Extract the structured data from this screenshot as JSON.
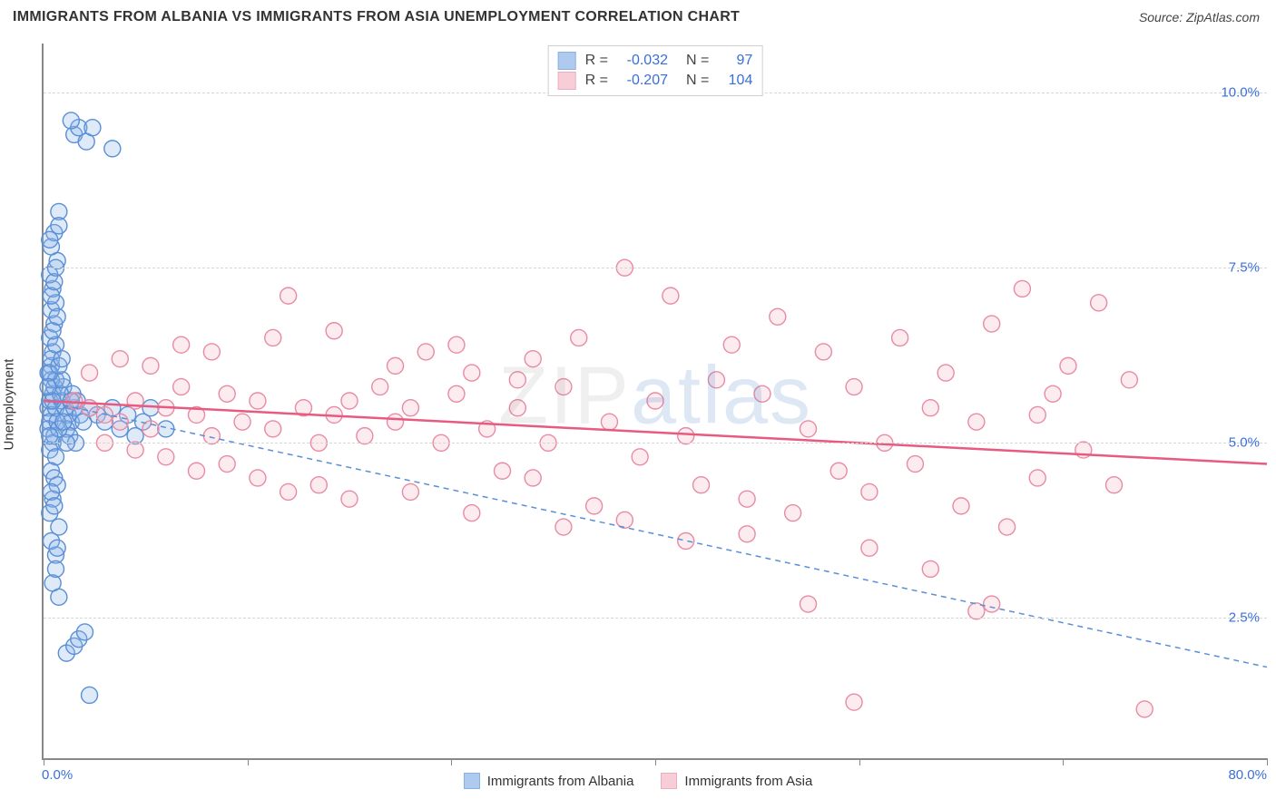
{
  "header": {
    "title": "IMMIGRANTS FROM ALBANIA VS IMMIGRANTS FROM ASIA UNEMPLOYMENT CORRELATION CHART",
    "source_prefix": "Source: ",
    "source_name": "ZipAtlas.com"
  },
  "watermark": {
    "part1": "ZIP",
    "part2": "atlas"
  },
  "chart": {
    "type": "scatter",
    "y_axis_title": "Unemployment",
    "xlim": [
      0,
      80
    ],
    "ylim": [
      0.5,
      10.7
    ],
    "x_ticks": [
      0,
      13.33,
      26.67,
      40,
      53.33,
      66.67,
      80
    ],
    "x_tick_labels": {
      "min": "0.0%",
      "max": "80.0%"
    },
    "y_gridlines": [
      2.5,
      5.0,
      7.5,
      10.0
    ],
    "y_tick_labels": [
      "2.5%",
      "5.0%",
      "7.5%",
      "10.0%"
    ],
    "background_color": "#ffffff",
    "grid_color": "#d7d7d7",
    "axis_color": "#888888",
    "label_color": "#3a6fd8",
    "marker_radius": 9,
    "marker_stroke_width": 1.4,
    "marker_fill_opacity": 0.28,
    "series": [
      {
        "id": "albania",
        "label": "Immigrants from Albania",
        "color_stroke": "#5a8fd6",
        "color_fill": "#8db5e8",
        "stats": {
          "R": "-0.032",
          "N": "97"
        },
        "trend": {
          "x1": 0,
          "y1": 5.6,
          "x2": 80,
          "y2": 1.8,
          "dash": "6,5",
          "width": 1.5,
          "color": "#5a8fd6"
        },
        "points": [
          [
            0.3,
            5.5
          ],
          [
            0.4,
            5.6
          ],
          [
            0.5,
            5.4
          ],
          [
            0.6,
            5.7
          ],
          [
            0.4,
            5.3
          ],
          [
            0.7,
            5.8
          ],
          [
            0.3,
            5.2
          ],
          [
            0.8,
            5.5
          ],
          [
            0.5,
            6.1
          ],
          [
            0.6,
            6.3
          ],
          [
            0.4,
            6.5
          ],
          [
            0.7,
            6.7
          ],
          [
            0.5,
            6.9
          ],
          [
            0.8,
            7.0
          ],
          [
            0.6,
            7.2
          ],
          [
            0.4,
            7.4
          ],
          [
            0.9,
            7.6
          ],
          [
            0.5,
            7.8
          ],
          [
            0.7,
            8.0
          ],
          [
            1.0,
            8.3
          ],
          [
            0.6,
            5.0
          ],
          [
            0.4,
            4.9
          ],
          [
            0.8,
            4.8
          ],
          [
            0.5,
            4.6
          ],
          [
            0.7,
            4.5
          ],
          [
            0.9,
            4.4
          ],
          [
            0.6,
            4.2
          ],
          [
            0.4,
            4.0
          ],
          [
            1.0,
            3.8
          ],
          [
            0.8,
            3.4
          ],
          [
            1.2,
            5.6
          ],
          [
            1.4,
            5.5
          ],
          [
            1.6,
            5.4
          ],
          [
            1.8,
            5.3
          ],
          [
            2.0,
            5.5
          ],
          [
            2.2,
            5.6
          ],
          [
            1.5,
            5.2
          ],
          [
            1.3,
            5.8
          ],
          [
            1.7,
            5.1
          ],
          [
            1.9,
            5.7
          ],
          [
            2.4,
            5.4
          ],
          [
            2.1,
            5.0
          ],
          [
            0.5,
            5.9
          ],
          [
            0.3,
            6.0
          ],
          [
            0.7,
            5.1
          ],
          [
            0.9,
            5.3
          ],
          [
            1.1,
            5.7
          ],
          [
            1.0,
            5.2
          ],
          [
            0.6,
            5.6
          ],
          [
            0.8,
            5.9
          ],
          [
            0.4,
            5.1
          ],
          [
            1.2,
            5.9
          ],
          [
            1.3,
            5.3
          ],
          [
            0.5,
            4.3
          ],
          [
            0.7,
            4.1
          ],
          [
            1.5,
            5.0
          ],
          [
            1.8,
            5.6
          ],
          [
            2.6,
            5.3
          ],
          [
            3.0,
            5.5
          ],
          [
            3.5,
            5.4
          ],
          [
            4.0,
            5.3
          ],
          [
            0.5,
            6.2
          ],
          [
            0.8,
            6.4
          ],
          [
            0.4,
            6.0
          ],
          [
            1.0,
            6.1
          ],
          [
            0.6,
            6.6
          ],
          [
            0.9,
            6.8
          ],
          [
            1.2,
            6.2
          ],
          [
            0.5,
            7.1
          ],
          [
            0.7,
            7.3
          ],
          [
            0.3,
            5.8
          ],
          [
            0.8,
            7.5
          ],
          [
            0.4,
            7.9
          ],
          [
            1.0,
            8.1
          ],
          [
            2.0,
            9.4
          ],
          [
            2.3,
            9.5
          ],
          [
            2.8,
            9.3
          ],
          [
            3.2,
            9.5
          ],
          [
            4.5,
            9.2
          ],
          [
            1.8,
            9.6
          ],
          [
            1.5,
            2.0
          ],
          [
            2.0,
            2.1
          ],
          [
            2.3,
            2.2
          ],
          [
            2.7,
            2.3
          ],
          [
            3.0,
            1.4
          ],
          [
            0.6,
            3.0
          ],
          [
            0.8,
            3.2
          ],
          [
            1.0,
            2.8
          ],
          [
            0.5,
            3.6
          ],
          [
            0.9,
            3.5
          ],
          [
            5.0,
            5.2
          ],
          [
            5.5,
            5.4
          ],
          [
            6.0,
            5.1
          ],
          [
            6.5,
            5.3
          ],
          [
            7.0,
            5.5
          ],
          [
            8.0,
            5.2
          ],
          [
            4.5,
            5.5
          ]
        ]
      },
      {
        "id": "asia",
        "label": "Immigrants from Asia",
        "color_stroke": "#e88ba3",
        "color_fill": "#f5b8c7",
        "stats": {
          "R": "-0.207",
          "N": "104"
        },
        "trend": {
          "x1": 0,
          "y1": 5.6,
          "x2": 80,
          "y2": 4.7,
          "dash": "none",
          "width": 2.5,
          "color": "#e85a7f"
        },
        "points": [
          [
            2,
            5.6
          ],
          [
            3,
            5.5
          ],
          [
            4,
            5.4
          ],
          [
            5,
            5.3
          ],
          [
            6,
            5.6
          ],
          [
            7,
            5.2
          ],
          [
            8,
            5.5
          ],
          [
            9,
            5.8
          ],
          [
            10,
            5.4
          ],
          [
            11,
            5.1
          ],
          [
            12,
            5.7
          ],
          [
            13,
            5.3
          ],
          [
            14,
            5.6
          ],
          [
            15,
            5.2
          ],
          [
            16,
            7.1
          ],
          [
            17,
            5.5
          ],
          [
            18,
            5.0
          ],
          [
            19,
            5.4
          ],
          [
            20,
            5.6
          ],
          [
            21,
            5.1
          ],
          [
            22,
            5.8
          ],
          [
            23,
            5.3
          ],
          [
            24,
            5.5
          ],
          [
            25,
            6.3
          ],
          [
            26,
            5.0
          ],
          [
            27,
            5.7
          ],
          [
            28,
            6.0
          ],
          [
            29,
            5.2
          ],
          [
            30,
            4.6
          ],
          [
            31,
            5.5
          ],
          [
            32,
            6.2
          ],
          [
            33,
            5.0
          ],
          [
            34,
            5.8
          ],
          [
            35,
            6.5
          ],
          [
            36,
            4.1
          ],
          [
            37,
            5.3
          ],
          [
            38,
            7.5
          ],
          [
            39,
            4.8
          ],
          [
            40,
            5.6
          ],
          [
            41,
            7.1
          ],
          [
            42,
            5.1
          ],
          [
            43,
            4.4
          ],
          [
            44,
            5.9
          ],
          [
            45,
            6.4
          ],
          [
            46,
            4.2
          ],
          [
            47,
            5.7
          ],
          [
            48,
            6.8
          ],
          [
            49,
            4.0
          ],
          [
            50,
            5.2
          ],
          [
            51,
            6.3
          ],
          [
            52,
            4.6
          ],
          [
            53,
            5.8
          ],
          [
            54,
            4.3
          ],
          [
            55,
            5.0
          ],
          [
            56,
            6.5
          ],
          [
            57,
            4.7
          ],
          [
            58,
            5.5
          ],
          [
            59,
            6.0
          ],
          [
            60,
            4.1
          ],
          [
            61,
            5.3
          ],
          [
            62,
            6.7
          ],
          [
            63,
            3.8
          ],
          [
            64,
            7.2
          ],
          [
            65,
            4.5
          ],
          [
            66,
            5.7
          ],
          [
            67,
            6.1
          ],
          [
            53,
            1.3
          ],
          [
            68,
            4.9
          ],
          [
            69,
            7.0
          ],
          [
            70,
            4.4
          ],
          [
            71,
            5.9
          ],
          [
            62,
            2.7
          ],
          [
            4,
            5.0
          ],
          [
            6,
            4.9
          ],
          [
            8,
            4.8
          ],
          [
            10,
            4.6
          ],
          [
            12,
            4.7
          ],
          [
            14,
            4.5
          ],
          [
            16,
            4.3
          ],
          [
            18,
            4.4
          ],
          [
            20,
            4.2
          ],
          [
            24,
            4.3
          ],
          [
            28,
            4.0
          ],
          [
            32,
            4.5
          ],
          [
            34,
            3.8
          ],
          [
            38,
            3.9
          ],
          [
            42,
            3.6
          ],
          [
            46,
            3.7
          ],
          [
            50,
            2.7
          ],
          [
            54,
            3.5
          ],
          [
            58,
            3.2
          ],
          [
            61,
            2.6
          ],
          [
            72,
            1.2
          ],
          [
            3,
            6.0
          ],
          [
            5,
            6.2
          ],
          [
            7,
            6.1
          ],
          [
            9,
            6.4
          ],
          [
            11,
            6.3
          ],
          [
            15,
            6.5
          ],
          [
            19,
            6.6
          ],
          [
            23,
            6.1
          ],
          [
            27,
            6.4
          ],
          [
            31,
            5.9
          ],
          [
            65,
            5.4
          ]
        ]
      }
    ]
  },
  "stats_box_labels": {
    "R": "R =",
    "N": "N ="
  }
}
